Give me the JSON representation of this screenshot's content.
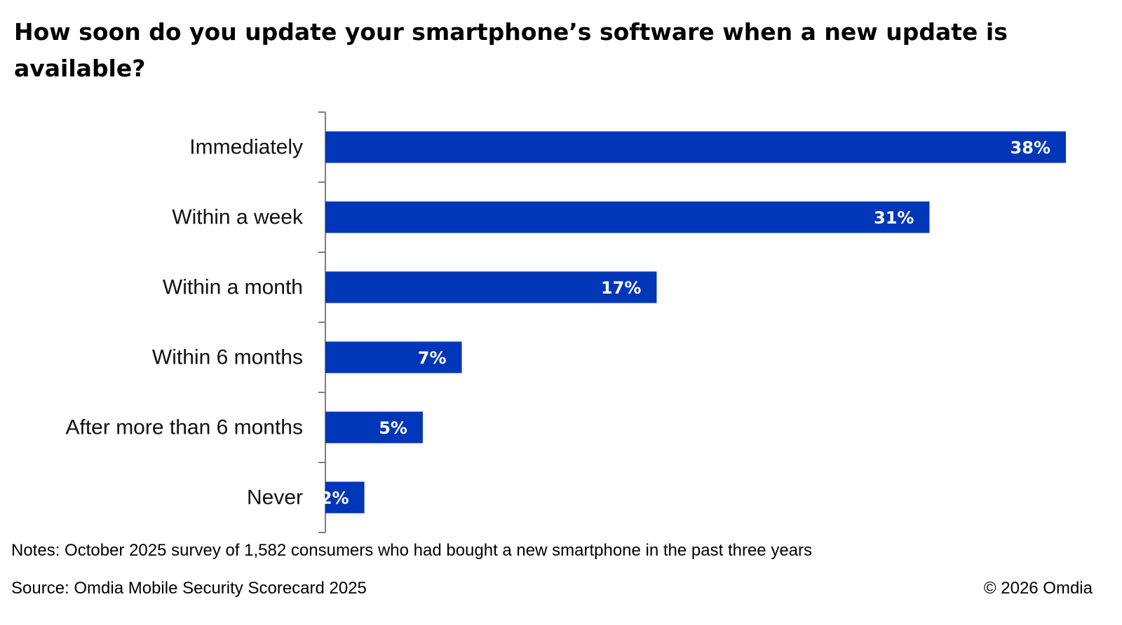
{
  "title": "How soon do you update your smartphone’s software when a new update is available?",
  "notes": "Notes: October 2025 survey of 1,582 consumers who had bought a new smartphone in the past three years",
  "source": "Source: Omdia Mobile Security Scorecard 2025",
  "copyright": "© 2026 Omdia",
  "colors": {
    "bar": "#0036B8",
    "axis": "#7f7f7f",
    "value_label": "#ffffff"
  },
  "chart_data": {
    "type": "bar",
    "orientation": "horizontal",
    "title": "How soon do you update your smartphone’s software when a new update is available?",
    "categories": [
      "Immediately",
      "Within a week",
      "Within a month",
      "Within 6 months",
      "After more than 6 months",
      "Never"
    ],
    "values": [
      38,
      31,
      17,
      7,
      5,
      2
    ],
    "value_labels": [
      "38%",
      "31%",
      "17%",
      "7%",
      "5%",
      "2%"
    ],
    "unit": "%",
    "xlim": [
      0,
      38
    ],
    "grid": false,
    "legend": "none"
  }
}
